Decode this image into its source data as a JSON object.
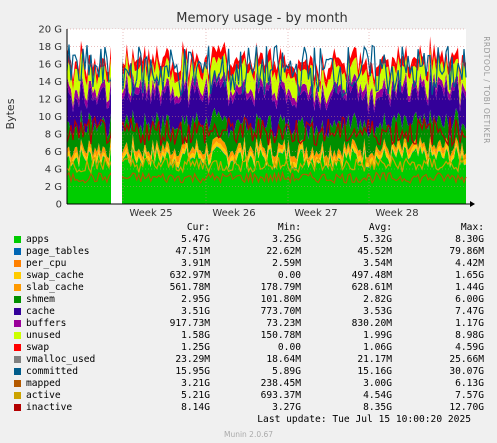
{
  "chart_data": {
    "type": "area",
    "title": "Memory usage - by month",
    "ylabel": "Bytes",
    "side_label": "RRDTOOL / TOBI OETIKER",
    "y_ticks": [
      "0",
      "2 G",
      "4 G",
      "6 G",
      "8 G",
      "10 G",
      "12 G",
      "14 G",
      "16 G",
      "18 G",
      "20 G"
    ],
    "ylim_gb": [
      0,
      20
    ],
    "x_ticks": [
      "Week 25",
      "Week 26",
      "Week 27",
      "Week 28"
    ],
    "grid": true,
    "columns": [
      "Cur:",
      "Min:",
      "Avg:",
      "Max:"
    ],
    "series": [
      {
        "name": "apps",
        "color": "#00cc00",
        "cur": "5.47G",
        "min": "3.25G",
        "avg": "5.32G",
        "max": "8.30G",
        "gb": 5.3
      },
      {
        "name": "page_tables",
        "color": "#0066b3",
        "cur": "47.51M",
        "min": "22.62M",
        "avg": "45.52M",
        "max": "79.86M",
        "gb": 0.05
      },
      {
        "name": "per_cpu",
        "color": "#ff8000",
        "cur": "3.91M",
        "min": "2.59M",
        "avg": "3.54M",
        "max": "4.42M",
        "gb": 0.004
      },
      {
        "name": "swap_cache",
        "color": "#ffcc00",
        "cur": "632.97M",
        "min": "0.00",
        "avg": "497.48M",
        "max": "1.65G",
        "gb": 0.5
      },
      {
        "name": "slab_cache",
        "color": "#ff9900",
        "cur": "561.78M",
        "min": "178.79M",
        "avg": "628.61M",
        "max": "1.44G",
        "gb": 0.6
      },
      {
        "name": "shmem",
        "color": "#008f00",
        "cur": "2.95G",
        "min": "101.80M",
        "avg": "2.82G",
        "max": "6.00G",
        "gb": 2.8
      },
      {
        "name": "cache",
        "color": "#330099",
        "cur": "3.51G",
        "min": "773.70M",
        "avg": "3.53G",
        "max": "7.47G",
        "gb": 3.5
      },
      {
        "name": "buffers",
        "color": "#990099",
        "cur": "917.73M",
        "min": "73.23M",
        "avg": "830.20M",
        "max": "1.17G",
        "gb": 0.8
      },
      {
        "name": "unused",
        "color": "#ccff00",
        "cur": "1.58G",
        "min": "150.78M",
        "avg": "1.99G",
        "max": "8.98G",
        "gb": 2.0
      },
      {
        "name": "swap",
        "color": "#ff0000",
        "cur": "1.25G",
        "min": "0.00",
        "avg": "1.06G",
        "max": "4.59G",
        "gb": 1.1
      },
      {
        "name": "vmalloc_used",
        "color": "#808080",
        "cur": "23.29M",
        "min": "18.64M",
        "avg": "21.17M",
        "max": "25.66M",
        "gb": 0
      },
      {
        "name": "committed",
        "color": "#005c8a",
        "cur": "15.95G",
        "min": "5.89G",
        "avg": "15.16G",
        "max": "30.07G",
        "gb": 15.2
      },
      {
        "name": "mapped",
        "color": "#b35900",
        "cur": "3.21G",
        "min": "238.45M",
        "avg": "3.00G",
        "max": "6.13G",
        "gb": 3.0
      },
      {
        "name": "active",
        "color": "#cca300",
        "cur": "5.21G",
        "min": "693.37M",
        "avg": "4.54G",
        "max": "7.57G",
        "gb": 4.5
      },
      {
        "name": "inactive",
        "color": "#b30000",
        "cur": "8.14G",
        "min": "3.27G",
        "avg": "8.35G",
        "max": "12.70G",
        "gb": 8.3
      }
    ],
    "last_update": "Last update: Tue Jul 15 10:00:20 2025",
    "footer": "Munin 2.0.67"
  }
}
